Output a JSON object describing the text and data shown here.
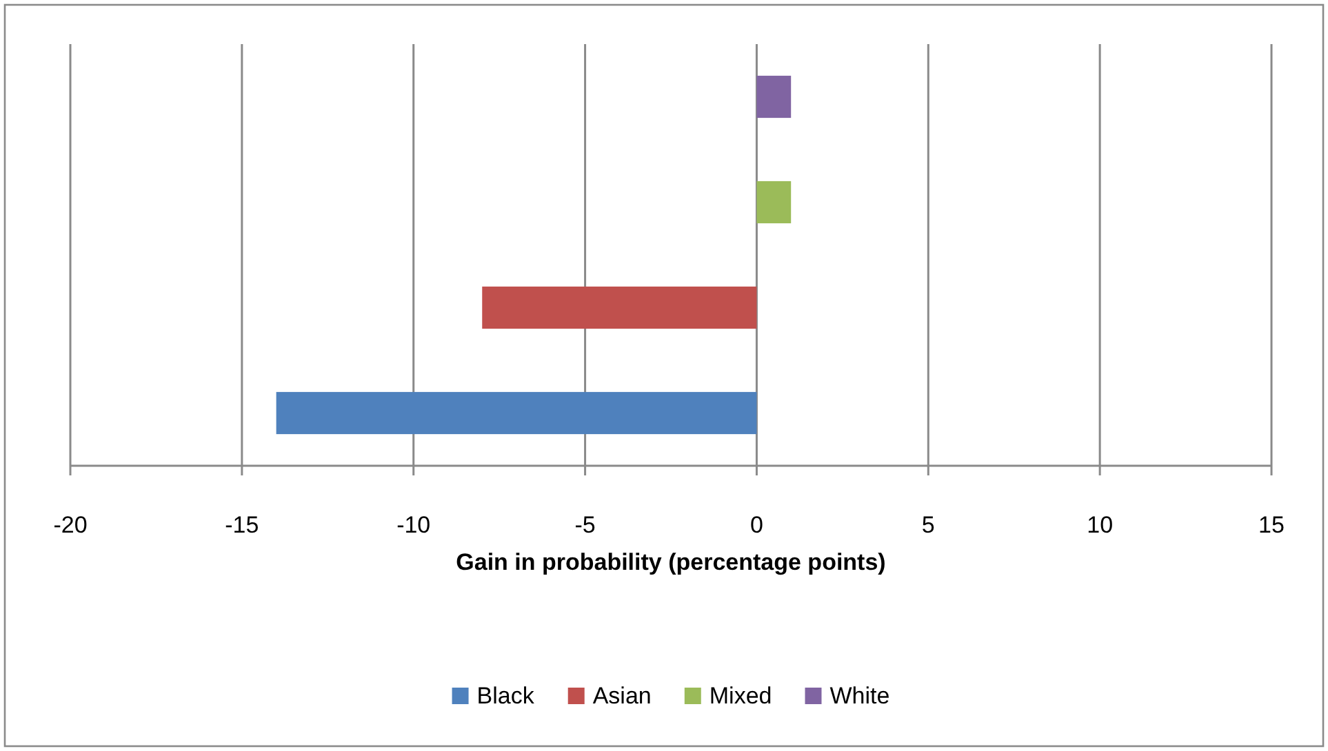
{
  "chart_data": {
    "type": "bar",
    "orientation": "horizontal",
    "categories": [
      null
    ],
    "series": [
      {
        "name": "Black",
        "color": "#4f81bd",
        "values": [
          -14
        ]
      },
      {
        "name": "Asian",
        "color": "#c0504d",
        "values": [
          -8
        ]
      },
      {
        "name": "Mixed",
        "color": "#9bbb59",
        "values": [
          1
        ]
      },
      {
        "name": "White",
        "color": "#8064a2",
        "values": [
          1
        ]
      }
    ],
    "xlabel": "Gain in probability (percentage points)",
    "xlim": [
      -20,
      15
    ],
    "xticks": [
      -20,
      -15,
      -10,
      -5,
      0,
      5,
      10,
      15
    ],
    "grid": "x",
    "legend": "bottom"
  }
}
